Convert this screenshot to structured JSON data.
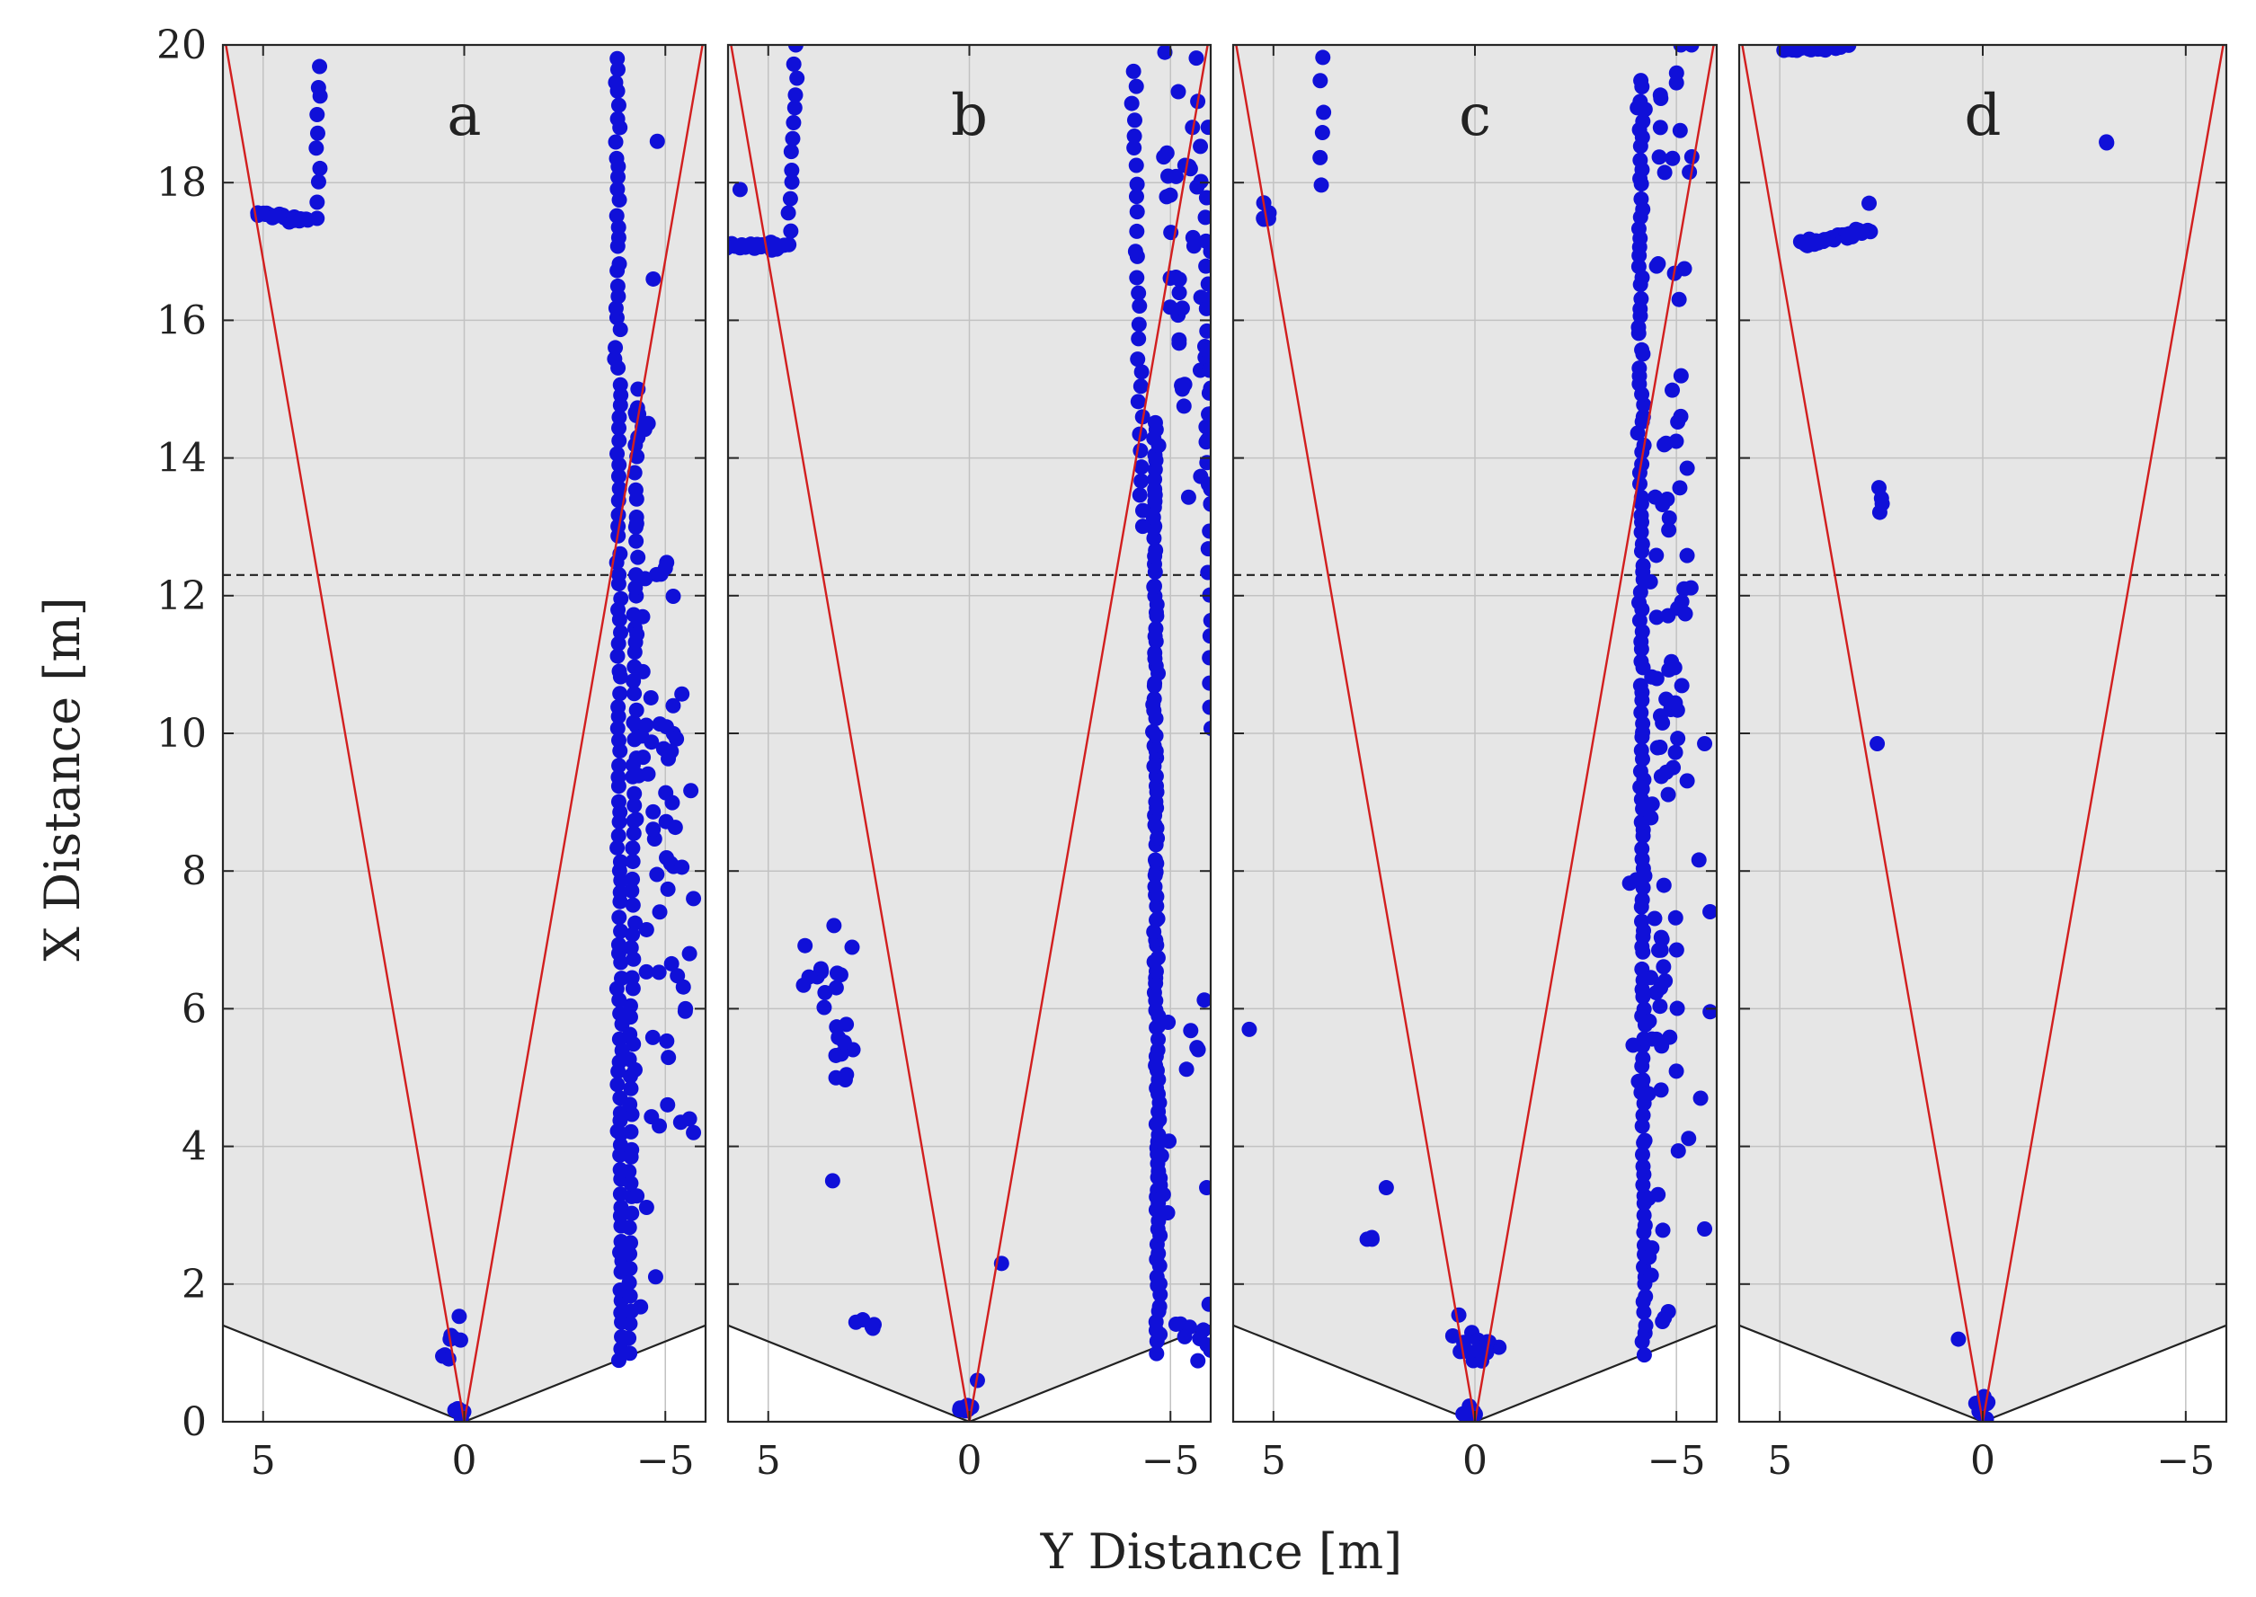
{
  "chart_data": {
    "type": "scatter",
    "xlabel": "Y Distance [m]",
    "ylabel": "X Distance [m]",
    "shared_axes": {
      "x_range": [
        6,
        -6
      ],
      "y_range": [
        0,
        20
      ],
      "x_ticks": [
        5,
        0,
        -5
      ],
      "x_tick_labels": [
        "5",
        "0",
        "−5"
      ],
      "y_ticks": [
        0,
        2,
        4,
        6,
        8,
        10,
        12,
        14,
        16,
        18,
        20
      ],
      "y_tick_labels": [
        "0",
        "2",
        "4",
        "6",
        "8",
        "10",
        "12",
        "14",
        "16",
        "18",
        "20"
      ],
      "grid": true
    },
    "colors": {
      "point": "#1010d8",
      "fov_line": "#d21f1f",
      "threshold_line": "#222222",
      "blind_zone_line": "#222222",
      "panel_background": "#e6e6e6"
    },
    "reference_lines": {
      "threshold_x": 12.3,
      "fov_half_angle_deg": 16.5,
      "blind_zone_boundary": [
        [
          6,
          1.4
        ],
        [
          0,
          0
        ],
        [
          -6,
          1.4
        ]
      ]
    },
    "panels": [
      {
        "label": "a",
        "clusters": [
          {
            "kind": "segment",
            "from": [
              5.1,
              17.55
            ],
            "to": [
              3.9,
              17.45
            ],
            "n": 22
          },
          {
            "kind": "segment",
            "from": [
              3.7,
              17.5
            ],
            "to": [
              3.6,
              19.7
            ],
            "n": 10
          },
          {
            "kind": "segment",
            "from": [
              -3.9,
              0.9
            ],
            "to": [
              -3.8,
              19.8
            ],
            "n": 110
          },
          {
            "kind": "segment",
            "from": [
              -4.1,
              1.0
            ],
            "to": [
              -4.3,
              15.0
            ],
            "n": 70
          },
          {
            "kind": "blob",
            "cx": -4.7,
            "cy": 10.0,
            "sx": 0.3,
            "sy": 1.2,
            "n": 25
          },
          {
            "kind": "blob",
            "cx": -5.0,
            "cy": 7.5,
            "sx": 0.4,
            "sy": 1.6,
            "n": 25
          },
          {
            "kind": "blob",
            "cx": -4.9,
            "cy": 3.8,
            "sx": 0.4,
            "sy": 1.0,
            "n": 10
          },
          {
            "kind": "blob",
            "cx": -4.6,
            "cy": 13.5,
            "sx": 0.2,
            "sy": 1.5,
            "n": 8
          },
          {
            "kind": "blob",
            "cx": 0.3,
            "cy": 1.1,
            "sx": 0.15,
            "sy": 0.2,
            "n": 8
          },
          {
            "kind": "blob",
            "cx": 0.1,
            "cy": 0.12,
            "sx": 0.1,
            "sy": 0.08,
            "n": 6
          },
          {
            "kind": "point",
            "x": -5.7,
            "y": 7.6
          },
          {
            "kind": "point",
            "x": -5.6,
            "y": 6.8
          },
          {
            "kind": "point",
            "x": -5.7,
            "y": 4.2
          },
          {
            "kind": "point",
            "x": -5.5,
            "y": 6.0
          },
          {
            "kind": "point",
            "x": -5.6,
            "y": 4.4
          },
          {
            "kind": "point",
            "x": -4.7,
            "y": 16.6
          },
          {
            "kind": "point",
            "x": -4.8,
            "y": 18.6
          },
          {
            "kind": "point",
            "x": -5.0,
            "y": 12.4
          }
        ]
      },
      {
        "label": "b",
        "clusters": [
          {
            "kind": "segment",
            "from": [
              6.0,
              17.1
            ],
            "to": [
              4.6,
              17.05
            ],
            "n": 20
          },
          {
            "kind": "segment",
            "from": [
              4.5,
              17.1
            ],
            "to": [
              4.3,
              20.0
            ],
            "n": 14
          },
          {
            "kind": "point",
            "x": 5.7,
            "y": 17.9
          },
          {
            "kind": "segment",
            "from": [
              -4.7,
              1.0
            ],
            "to": [
              -4.6,
              14.5
            ],
            "n": 120
          },
          {
            "kind": "segment",
            "from": [
              -4.3,
              13.0
            ],
            "to": [
              -4.1,
              19.6
            ],
            "n": 30
          },
          {
            "kind": "blob",
            "cx": -5.6,
            "cy": 15.8,
            "sx": 0.4,
            "sy": 1.6,
            "n": 40
          },
          {
            "kind": "segment",
            "from": [
              -6.0,
              10.1
            ],
            "to": [
              -5.9,
              17.8
            ],
            "n": 25
          },
          {
            "kind": "blob",
            "cx": -5.3,
            "cy": 18.3,
            "sx": 0.3,
            "sy": 0.4,
            "n": 12
          },
          {
            "kind": "blob",
            "cx": -5.8,
            "cy": 1.5,
            "sx": 0.3,
            "sy": 0.3,
            "n": 10
          },
          {
            "kind": "blob",
            "cx": -4.8,
            "cy": 3.6,
            "sx": 0.1,
            "sy": 0.4,
            "n": 6
          },
          {
            "kind": "blob",
            "cx": -5.5,
            "cy": 5.5,
            "sx": 0.3,
            "sy": 0.3,
            "n": 6
          },
          {
            "kind": "point",
            "x": -5.9,
            "y": 3.4
          },
          {
            "kind": "blob",
            "cx": 3.5,
            "cy": 6.4,
            "sx": 0.3,
            "sy": 0.5,
            "n": 18
          },
          {
            "kind": "blob",
            "cx": 3.3,
            "cy": 5.3,
            "sx": 0.2,
            "sy": 0.2,
            "n": 6
          },
          {
            "kind": "point",
            "x": 3.4,
            "y": 3.5
          },
          {
            "kind": "blob",
            "cx": 2.5,
            "cy": 1.45,
            "sx": 0.1,
            "sy": 0.08,
            "n": 5
          },
          {
            "kind": "blob",
            "cx": 0.1,
            "cy": 0.18,
            "sx": 0.12,
            "sy": 0.08,
            "n": 8
          },
          {
            "kind": "point",
            "x": -0.2,
            "y": 0.6
          },
          {
            "kind": "point",
            "x": -0.8,
            "y": 2.3
          }
        ]
      },
      {
        "label": "c",
        "clusters": [
          {
            "kind": "blob",
            "cx": 5.15,
            "cy": 17.6,
            "sx": 0.1,
            "sy": 0.08,
            "n": 6
          },
          {
            "kind": "segment",
            "from": [
              3.8,
              18.0
            ],
            "to": [
              3.8,
              19.8
            ],
            "n": 6
          },
          {
            "kind": "point",
            "x": 5.6,
            "y": 5.7
          },
          {
            "kind": "segment",
            "from": [
              -4.2,
              1.0
            ],
            "to": [
              -4.1,
              19.5
            ],
            "n": 130
          },
          {
            "kind": "blob",
            "cx": -4.9,
            "cy": 11.0,
            "sx": 0.35,
            "sy": 4.5,
            "n": 70
          },
          {
            "kind": "blob",
            "cx": -4.5,
            "cy": 6.0,
            "sx": 0.3,
            "sy": 2.5,
            "n": 30
          },
          {
            "kind": "blob",
            "cx": -4.8,
            "cy": 19.0,
            "sx": 0.2,
            "sy": 0.5,
            "n": 8
          },
          {
            "kind": "point",
            "x": -5.7,
            "y": 9.85
          },
          {
            "kind": "point",
            "x": -5.6,
            "y": 4.7
          },
          {
            "kind": "point",
            "x": -5.7,
            "y": 2.8
          },
          {
            "kind": "point",
            "x": -4.8,
            "y": 1.6
          },
          {
            "kind": "blob",
            "cx": 2.6,
            "cy": 2.65,
            "sx": 0.05,
            "sy": 0.05,
            "n": 3
          },
          {
            "kind": "point",
            "x": 2.2,
            "y": 3.4
          },
          {
            "kind": "blob",
            "cx": 0.1,
            "cy": 1.1,
            "sx": 0.3,
            "sy": 0.15,
            "n": 14
          },
          {
            "kind": "blob",
            "cx": 0.1,
            "cy": 0.1,
            "sx": 0.1,
            "sy": 0.08,
            "n": 6
          },
          {
            "kind": "point",
            "x": 0.4,
            "y": 1.55
          }
        ]
      },
      {
        "label": "d",
        "clusters": [
          {
            "kind": "segment",
            "from": [
              4.9,
              19.9
            ],
            "to": [
              3.3,
              20.0
            ],
            "n": 20
          },
          {
            "kind": "segment",
            "from": [
              2.8,
              17.3
            ],
            "to": [
              4.5,
              17.1
            ],
            "n": 26
          },
          {
            "kind": "point",
            "x": 2.8,
            "y": 17.7
          },
          {
            "kind": "blob",
            "cx": -3.1,
            "cy": 18.55,
            "sx": 0.03,
            "sy": 0.05,
            "n": 2
          },
          {
            "kind": "blob",
            "cx": 2.5,
            "cy": 13.4,
            "sx": 0.08,
            "sy": 0.1,
            "n": 4
          },
          {
            "kind": "point",
            "x": 2.6,
            "y": 9.85
          },
          {
            "kind": "point",
            "x": 0.6,
            "y": 1.2
          },
          {
            "kind": "blob",
            "cx": 0.0,
            "cy": 0.25,
            "sx": 0.1,
            "sy": 0.12,
            "n": 8
          }
        ]
      }
    ]
  }
}
